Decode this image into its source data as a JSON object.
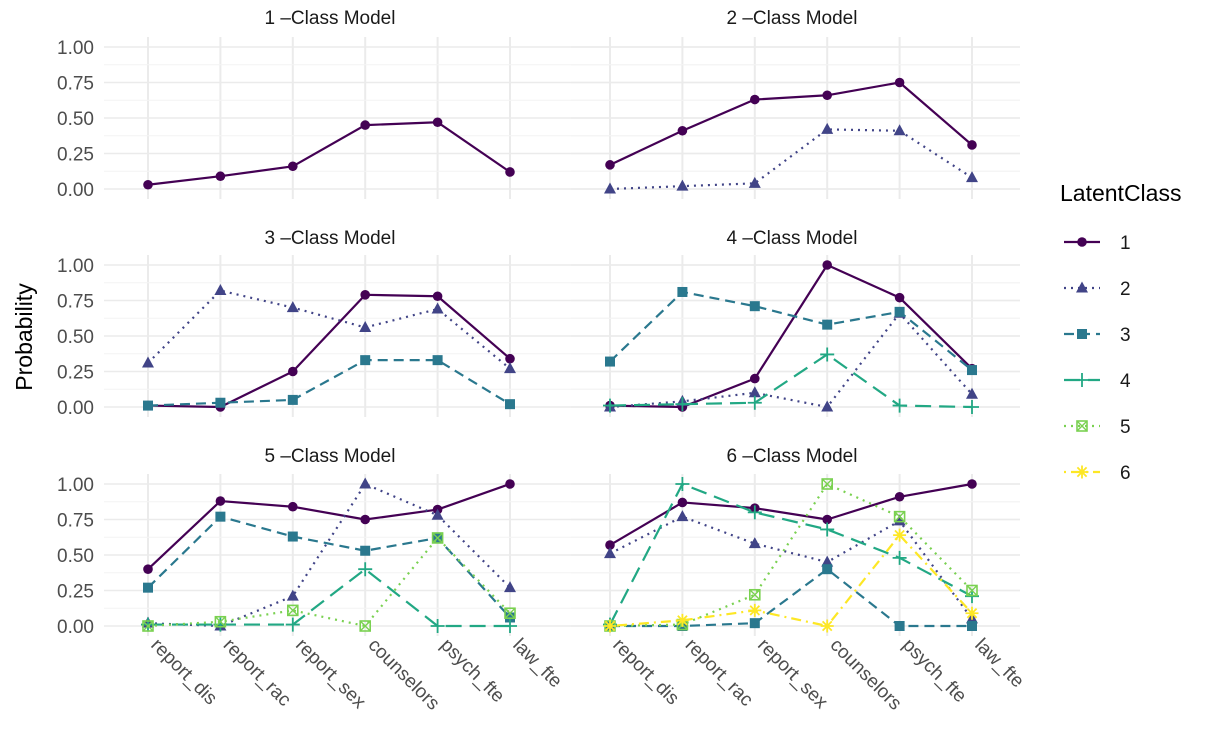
{
  "chart_data": {
    "type": "line",
    "ylabel": "Probability",
    "xlabel": "",
    "ylim": [
      0,
      1
    ],
    "yticks": [
      "0.00",
      "0.25",
      "0.50",
      "0.75",
      "1.00"
    ],
    "categories": [
      "report_dis",
      "report_rac",
      "report_sex",
      "counselors",
      "psych_fte",
      "law_fte"
    ],
    "grid": true,
    "legend": {
      "title": "LatentClass",
      "placement": "right",
      "entries": [
        {
          "label": "1",
          "color": "#440154",
          "dash": "solid",
          "marker": "circle"
        },
        {
          "label": "2",
          "color": "#414487",
          "dash": "dotted",
          "marker": "triangle"
        },
        {
          "label": "3",
          "color": "#2A788E",
          "dash": "dashed",
          "marker": "square"
        },
        {
          "label": "4",
          "color": "#22A884",
          "dash": "longdash",
          "marker": "plus"
        },
        {
          "label": "5",
          "color": "#7AD151",
          "dash": "dotted",
          "marker": "boxed-x"
        },
        {
          "label": "6",
          "color": "#FDE725",
          "dash": "dotdash",
          "marker": "asterisk"
        }
      ]
    },
    "panels": [
      {
        "title": "1 –Class Model",
        "series": [
          {
            "class": "1",
            "values": [
              0.03,
              0.09,
              0.16,
              0.45,
              0.47,
              0.12
            ]
          }
        ]
      },
      {
        "title": "2 –Class Model",
        "series": [
          {
            "class": "1",
            "values": [
              0.17,
              0.41,
              0.63,
              0.66,
              0.75,
              0.31
            ]
          },
          {
            "class": "2",
            "values": [
              0.0,
              0.02,
              0.04,
              0.42,
              0.41,
              0.08
            ]
          }
        ]
      },
      {
        "title": "3 –Class Model",
        "series": [
          {
            "class": "1",
            "values": [
              0.01,
              0.0,
              0.25,
              0.79,
              0.78,
              0.34
            ]
          },
          {
            "class": "2",
            "values": [
              0.31,
              0.82,
              0.7,
              0.56,
              0.69,
              0.27
            ]
          },
          {
            "class": "3",
            "values": [
              0.01,
              0.03,
              0.05,
              0.33,
              0.33,
              0.02
            ]
          }
        ]
      },
      {
        "title": "4 –Class Model",
        "series": [
          {
            "class": "1",
            "values": [
              0.01,
              0.0,
              0.2,
              1.0,
              0.77,
              0.27
            ]
          },
          {
            "class": "2",
            "values": [
              0.0,
              0.04,
              0.1,
              0.0,
              0.66,
              0.09
            ]
          },
          {
            "class": "3",
            "values": [
              0.32,
              0.81,
              0.71,
              0.58,
              0.67,
              0.26
            ]
          },
          {
            "class": "4",
            "values": [
              0.01,
              0.02,
              0.03,
              0.37,
              0.01,
              0.0
            ]
          }
        ]
      },
      {
        "title": "5 –Class Model",
        "series": [
          {
            "class": "1",
            "values": [
              0.4,
              0.88,
              0.84,
              0.75,
              0.82,
              1.0
            ]
          },
          {
            "class": "2",
            "values": [
              0.02,
              0.0,
              0.21,
              1.0,
              0.78,
              0.27
            ]
          },
          {
            "class": "3",
            "values": [
              0.27,
              0.77,
              0.63,
              0.53,
              0.62,
              0.06
            ]
          },
          {
            "class": "4",
            "values": [
              0.01,
              0.01,
              0.01,
              0.4,
              0.0,
              0.0
            ]
          },
          {
            "class": "5",
            "values": [
              0.0,
              0.03,
              0.11,
              0.0,
              0.62,
              0.09
            ]
          }
        ]
      },
      {
        "title": "6 –Class Model",
        "series": [
          {
            "class": "1",
            "values": [
              0.57,
              0.87,
              0.83,
              0.75,
              0.91,
              1.0
            ]
          },
          {
            "class": "2",
            "values": [
              0.51,
              0.77,
              0.58,
              0.45,
              0.74,
              0.05
            ]
          },
          {
            "class": "3",
            "values": [
              0.0,
              0.0,
              0.02,
              0.4,
              0.0,
              0.0
            ]
          },
          {
            "class": "4",
            "values": [
              0.01,
              1.0,
              0.8,
              0.68,
              0.48,
              0.21
            ]
          },
          {
            "class": "5",
            "values": [
              0.0,
              0.01,
              0.22,
              1.0,
              0.77,
              0.25
            ]
          },
          {
            "class": "6",
            "values": [
              0.0,
              0.04,
              0.11,
              0.0,
              0.64,
              0.09
            ]
          }
        ]
      }
    ]
  }
}
